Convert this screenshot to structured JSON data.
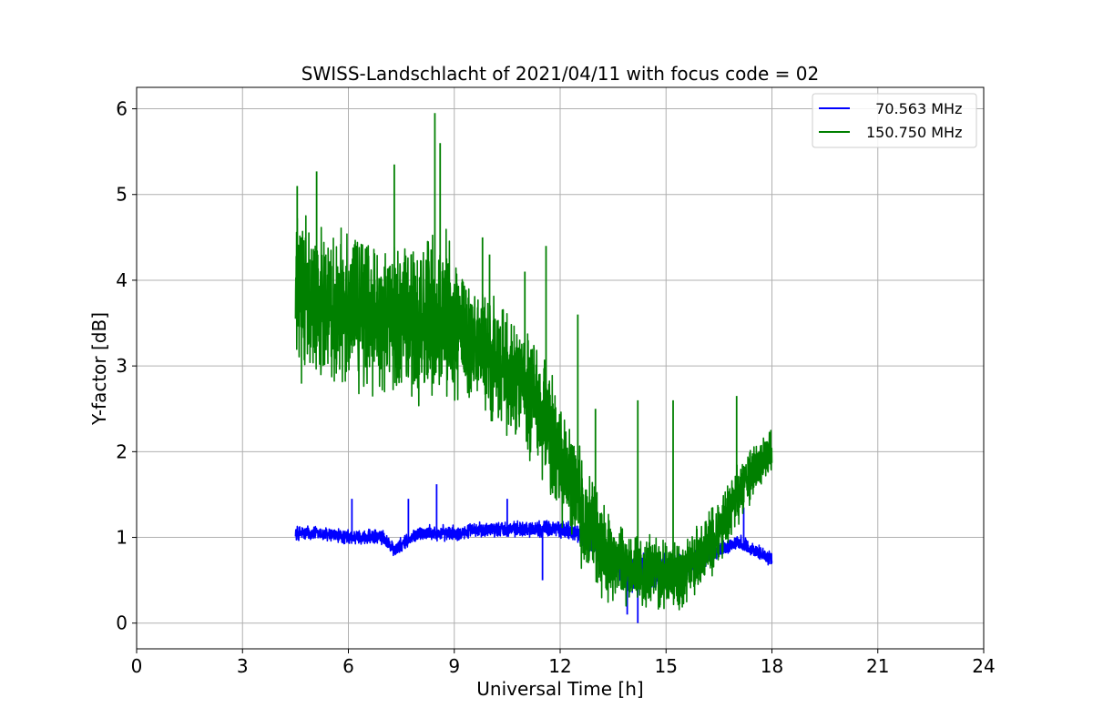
{
  "chart_data": {
    "type": "line",
    "title": "SWISS-Landschlacht of 2021/04/11 with focus code = 02",
    "xlabel": "Universal Time [h]",
    "ylabel": "Y-factor [dB]",
    "xlim": [
      0,
      24
    ],
    "ylim": [
      -0.3,
      6.25
    ],
    "xticks": [
      "0",
      "3",
      "6",
      "9",
      "12",
      "15",
      "18",
      "21",
      "24"
    ],
    "yticks": [
      "0",
      "1",
      "2",
      "3",
      "4",
      "5",
      "6"
    ],
    "grid": true,
    "legend_position": "top-right",
    "series": [
      {
        "name": "  70.563 MHz",
        "color": "#0000ff",
        "x": [
          4.5,
          5.0,
          6.0,
          7.0,
          7.3,
          8.0,
          9.0,
          10.0,
          11.0,
          12.0,
          12.5,
          13.0,
          13.5,
          14.0,
          14.5,
          15.0,
          15.5,
          16.0,
          16.5,
          17.0,
          17.5,
          18.0
        ],
        "y": [
          1.05,
          1.05,
          1.0,
          1.0,
          0.85,
          1.05,
          1.05,
          1.1,
          1.1,
          1.1,
          1.05,
          0.9,
          0.7,
          0.55,
          0.6,
          0.6,
          0.65,
          0.75,
          0.85,
          0.95,
          0.85,
          0.75
        ],
        "noise": [
          0.1,
          0.1,
          0.1,
          0.1,
          0.1,
          0.1,
          0.1,
          0.1,
          0.1,
          0.12,
          0.12,
          0.15,
          0.2,
          0.25,
          0.25,
          0.25,
          0.2,
          0.15,
          0.1,
          0.1,
          0.1,
          0.1
        ],
        "spikes": [
          [
            6.1,
            1.45
          ],
          [
            7.7,
            1.45
          ],
          [
            8.5,
            1.62
          ],
          [
            10.5,
            1.45
          ],
          [
            11.5,
            0.5
          ],
          [
            14.2,
            0.0
          ],
          [
            13.9,
            0.1
          ],
          [
            17.2,
            1.35
          ]
        ]
      },
      {
        "name": "150.750 MHz",
        "color": "#008000",
        "x": [
          4.5,
          5.0,
          6.0,
          7.0,
          8.0,
          8.8,
          9.0,
          10.0,
          11.0,
          11.5,
          12.0,
          12.5,
          13.0,
          13.5,
          14.0,
          14.5,
          15.0,
          15.5,
          16.0,
          16.5,
          17.0,
          17.5,
          18.0
        ],
        "y": [
          3.8,
          3.75,
          3.7,
          3.6,
          3.5,
          3.6,
          3.4,
          3.1,
          2.7,
          2.4,
          1.9,
          1.4,
          1.0,
          0.7,
          0.6,
          0.6,
          0.55,
          0.6,
          0.8,
          1.1,
          1.5,
          1.8,
          2.0
        ],
        "noise": [
          1.0,
          1.0,
          1.0,
          1.0,
          1.0,
          1.1,
          0.9,
          0.8,
          0.8,
          0.8,
          0.8,
          0.75,
          0.65,
          0.55,
          0.5,
          0.5,
          0.45,
          0.45,
          0.45,
          0.45,
          0.4,
          0.35,
          0.3
        ],
        "spikes": [
          [
            4.55,
            5.1
          ],
          [
            5.1,
            5.27
          ],
          [
            7.3,
            5.35
          ],
          [
            8.45,
            5.95
          ],
          [
            8.6,
            5.6
          ],
          [
            9.8,
            4.5
          ],
          [
            10.0,
            4.3
          ],
          [
            11.0,
            4.1
          ],
          [
            11.6,
            4.4
          ],
          [
            12.5,
            3.6
          ],
          [
            13.0,
            2.5
          ],
          [
            14.2,
            2.6
          ],
          [
            15.2,
            2.6
          ],
          [
            17.0,
            2.65
          ]
        ]
      }
    ]
  }
}
